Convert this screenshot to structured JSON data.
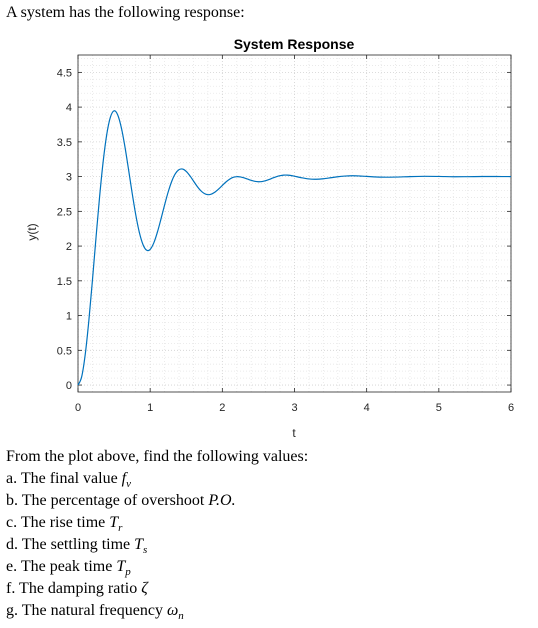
{
  "intro": "A system has the following response:",
  "question_intro": "From the plot above, find the following values:",
  "items": [
    {
      "letter": "a.",
      "text": "The final value",
      "symbol": "f",
      "subscript": "v"
    },
    {
      "letter": "b.",
      "text": "The percentage of overshoot",
      "symbol": "P.O.",
      "subscript": ""
    },
    {
      "letter": "c.",
      "text": "The rise time",
      "symbol": "T",
      "subscript": "r"
    },
    {
      "letter": "d.",
      "text": "The settling time",
      "symbol": "T",
      "subscript": "s"
    },
    {
      "letter": "e.",
      "text": "The peak time",
      "symbol": "T",
      "subscript": "p"
    },
    {
      "letter": "f.",
      "text": "The damping ratio",
      "symbol": "ζ",
      "subscript": ""
    },
    {
      "letter": "g.",
      "text": "The natural frequency",
      "symbol": "ω",
      "subscript": "n"
    }
  ],
  "chart_data": {
    "type": "line",
    "title": "System Response",
    "xlabel": "t",
    "ylabel": "y(t)",
    "xlim": [
      0,
      6
    ],
    "ylim": [
      -0.1,
      4.75
    ],
    "xticks": [
      "0",
      "1",
      "2",
      "3",
      "4",
      "5",
      "6"
    ],
    "yticks": [
      "0",
      "0.5",
      "1",
      "1.5",
      "2",
      "2.5",
      "3",
      "3.5",
      "4",
      "4.5"
    ],
    "grid": true,
    "line_color": "#0072BD",
    "series": [
      {
        "x": [
          0,
          0.05,
          0.1,
          0.15,
          0.2,
          0.25,
          0.3,
          0.35,
          0.4,
          0.45,
          0.5,
          0.55,
          0.6,
          0.65,
          0.7,
          0.75,
          0.8,
          0.85,
          0.9,
          0.95,
          1.0,
          1.05,
          1.1,
          1.15,
          1.2,
          1.25,
          1.3,
          1.35,
          1.4,
          1.45,
          1.5,
          1.55,
          1.6,
          1.65,
          1.7,
          1.75,
          1.8,
          1.85,
          1.9,
          1.95,
          2.0,
          2.05,
          2.1,
          2.15,
          2.2,
          2.25,
          2.3,
          2.35,
          2.4,
          2.45,
          2.5,
          2.55,
          2.6,
          2.65,
          2.7,
          2.75,
          2.8,
          2.85,
          2.9,
          2.95,
          3.0,
          3.1,
          3.2,
          3.3,
          3.4,
          3.5,
          3.6,
          3.7,
          3.8,
          3.9,
          4.0,
          4.2,
          4.4,
          4.6,
          4.8,
          5.0,
          5.2,
          5.4,
          5.6,
          5.8,
          6.0
        ],
        "y": [
          0,
          0.115,
          0.439,
          0.924,
          1.508,
          2.127,
          2.718,
          3.228,
          3.617,
          3.859,
          3.947,
          3.889,
          3.706,
          3.431,
          3.104,
          2.765,
          2.452,
          2.197,
          2.023,
          1.941,
          1.952,
          2.045,
          2.2,
          2.391,
          2.592,
          2.78,
          2.935,
          3.043,
          3.1,
          3.108,
          3.075,
          3.013,
          2.937,
          2.861,
          2.798,
          2.757,
          2.74,
          2.749,
          2.778,
          2.822,
          2.873,
          2.922,
          2.962,
          2.989,
          2.999,
          2.995,
          2.982,
          2.964,
          2.946,
          2.932,
          2.926,
          2.929,
          2.941,
          2.959,
          2.98,
          2.999,
          3.013,
          3.021,
          3.021,
          3.016,
          3.006,
          2.983,
          2.966,
          2.962,
          2.969,
          2.983,
          2.998,
          3.008,
          3.012,
          3.009,
          3.003,
          2.992,
          2.993,
          3.0,
          3.004,
          3.002,
          2.998,
          2.999,
          3.001,
          3.001,
          3.0
        ]
      }
    ]
  }
}
